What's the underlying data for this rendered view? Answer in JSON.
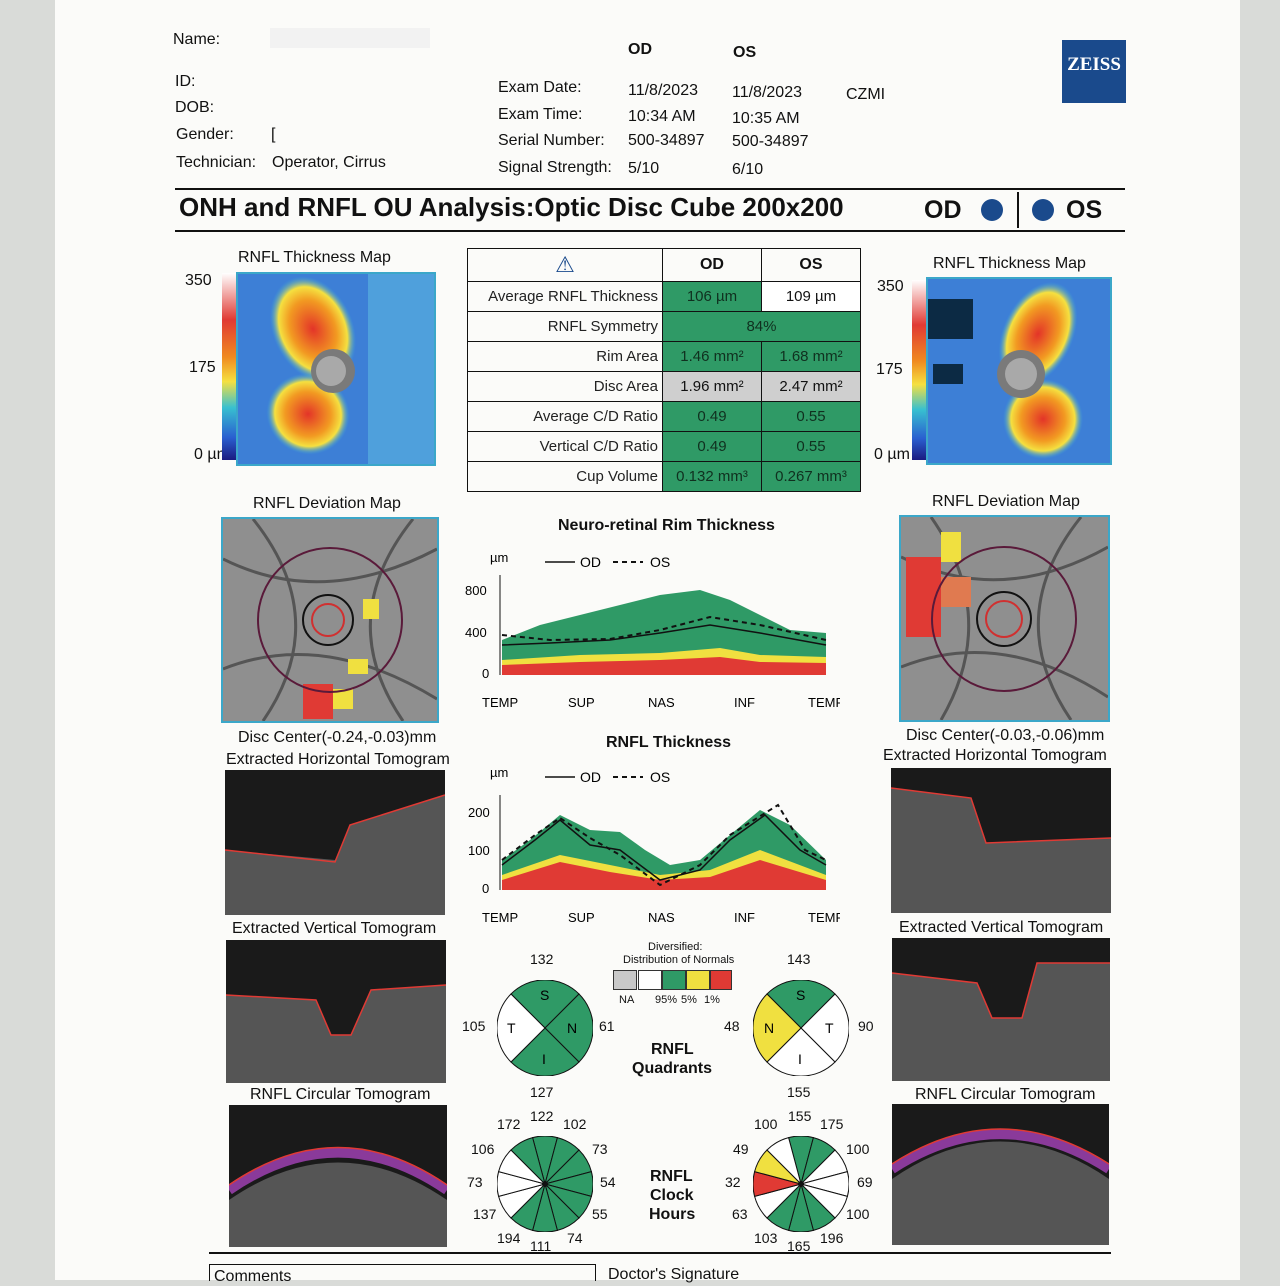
{
  "patient": {
    "name_label": "Name:",
    "id_label": "ID:",
    "dob_label": "DOB:",
    "gender_label": "Gender:",
    "gender_value": "[",
    "technician_label": "Technician:",
    "technician_value": "Operator, Cirrus"
  },
  "exam": {
    "od_label": "OD",
    "os_label": "OS",
    "date_label": "Exam Date:",
    "date_od": "11/8/2023",
    "date_os": "11/8/2023",
    "site": "CZMI",
    "time_label": "Exam Time:",
    "time_od": "10:34 AM",
    "time_os": "10:35 AM",
    "serial_label": "Serial Number:",
    "serial_od": "500-34897",
    "serial_os": "500-34897",
    "signal_label": "Signal Strength:",
    "signal_od": "5/10",
    "signal_os": "6/10"
  },
  "brand": {
    "logo": "ZEISS",
    "color": "#1a4a8c"
  },
  "title": {
    "text": "ONH and RNFL OU Analysis:Optic Disc Cube 200x200",
    "od": "OD",
    "os": "OS"
  },
  "thickness_map": {
    "title": "RNFL Thickness Map",
    "scale_top": "350",
    "scale_mid": "175",
    "scale_bottom": "0 µm"
  },
  "table": {
    "warning_icon": "warning-triangle-icon",
    "col_od": "OD",
    "col_os": "OS",
    "rows": [
      {
        "label": "Average RNFL Thickness",
        "od": "106 µm",
        "os": "109 µm"
      },
      {
        "label": "RNFL Symmetry",
        "both": "84%"
      },
      {
        "label": "Rim Area",
        "od": "1.46 mm²",
        "os": "1.68 mm²"
      },
      {
        "label": "Disc Area",
        "od": "1.96 mm²",
        "os": "2.47 mm²"
      },
      {
        "label": "Average C/D Ratio",
        "od": "0.49",
        "os": "0.55"
      },
      {
        "label": "Vertical C/D Ratio",
        "od": "0.49",
        "os": "0.55"
      },
      {
        "label": "Cup Volume",
        "od": "0.132 mm³",
        "os": "0.267 mm³"
      }
    ]
  },
  "deviation_map": {
    "title": "RNFL Deviation Map",
    "od_center": "Disc Center(-0.24,-0.03)mm",
    "os_center": "Disc Center(-0.03,-0.06)mm"
  },
  "rim_chart": {
    "title": "Neuro-retinal Rim Thickness",
    "unit": "µm",
    "legend_od": "OD",
    "legend_os": "OS",
    "yticks": [
      "800",
      "400",
      "0"
    ],
    "xticks": [
      "TEMP",
      "SUP",
      "NAS",
      "INF",
      "TEMP"
    ]
  },
  "rnfl_chart": {
    "title": "RNFL Thickness",
    "unit": "µm",
    "legend_od": "OD",
    "legend_os": "OS",
    "yticks": [
      "200",
      "100",
      "0"
    ],
    "xticks": [
      "TEMP",
      "SUP",
      "NAS",
      "INF",
      "TEMP"
    ]
  },
  "tomograms": {
    "horizontal": "Extracted Horizontal Tomogram",
    "vertical": "Extracted Vertical Tomogram",
    "circular": "RNFL Circular Tomogram"
  },
  "legend": {
    "title1": "Diversified:",
    "title2": "Distribution of Normals",
    "na": "NA",
    "p95": "95%",
    "p5": "5%",
    "p1": "1%"
  },
  "quadrants": {
    "label1": "RNFL",
    "label2": "Quadrants",
    "od": {
      "s": "132",
      "t": "105",
      "n": "61",
      "i": "127",
      "s_letter": "S",
      "t_letter": "T",
      "n_letter": "N",
      "i_letter": "I"
    },
    "os": {
      "s": "143",
      "n": "48",
      "t": "90",
      "i": "155",
      "s_letter": "S",
      "t_letter": "T",
      "n_letter": "N",
      "i_letter": "I"
    }
  },
  "clock": {
    "label1": "RNFL",
    "label2": "Clock",
    "label3": "Hours",
    "od": [
      "122",
      "102",
      "73",
      "54",
      "55",
      "74",
      "111",
      "194",
      "137",
      "73",
      "106",
      "172"
    ],
    "os": [
      "155",
      "175",
      "100",
      "69",
      "100",
      "196",
      "165",
      "103",
      "63",
      "32",
      "49",
      "100"
    ]
  },
  "footer": {
    "comments": "Comments",
    "signature": "Doctor's Signature"
  },
  "colors": {
    "green": "#2f9a66",
    "yellow": "#f0e040",
    "red": "#e03a34",
    "gray": "#c8c8c8"
  }
}
